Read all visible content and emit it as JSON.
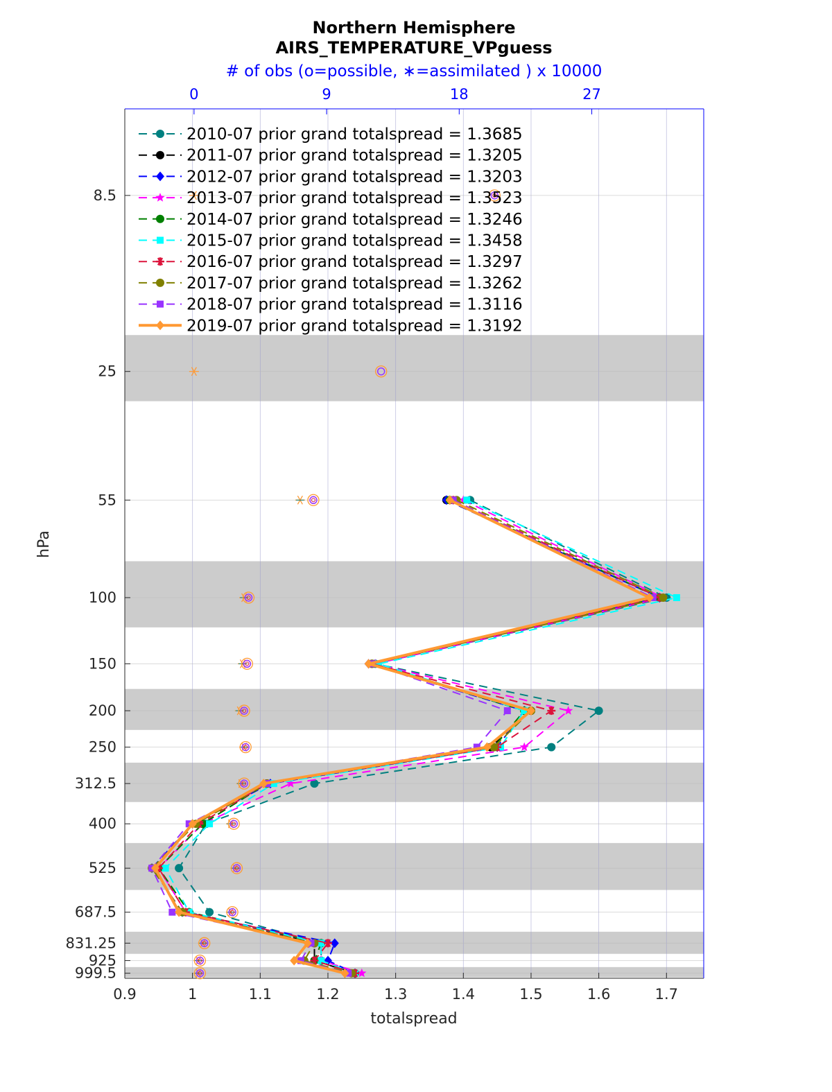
{
  "chart_data": {
    "type": "line",
    "title": "Northern Hemisphere",
    "subtitle": "AIRS_TEMPERATURE_VPguess",
    "top_axis_label": "# of obs (o=possible, ∗=assimilated ) x 10000",
    "xlabel": "totalspread",
    "ylabel": "hPa",
    "xlim": [
      0.9,
      1.755
    ],
    "x_ticks": [
      0.9,
      1,
      1.1,
      1.2,
      1.3,
      1.4,
      1.5,
      1.6,
      1.7
    ],
    "x_tick_labels": [
      "0.9",
      "1",
      "1.1",
      "1.2",
      "1.3",
      "1.4",
      "1.5",
      "1.6",
      "1.7"
    ],
    "top_xlim": [
      -4.7,
      34.6
    ],
    "top_ticks": [
      0,
      9,
      18,
      27
    ],
    "top_tick_labels": [
      "0",
      "9",
      "18",
      "27"
    ],
    "ylim": [
      1031,
      5
    ],
    "levels": [
      8.5,
      25,
      55,
      100,
      150,
      200,
      250,
      312.5,
      400,
      525,
      687.5,
      831.25,
      925,
      999.5
    ],
    "level_labels": [
      "8.5",
      "25",
      "55",
      "100",
      "150",
      "200",
      "250",
      "312.5",
      "400",
      "525",
      "687.5",
      "831.25",
      "925",
      "999.5"
    ],
    "plot_levels": [
      55,
      100,
      150,
      200,
      250,
      312.5,
      400,
      525,
      687.5,
      831.25,
      925,
      999.5
    ],
    "grid": true,
    "shaded_layers_hpa": [
      [
        20,
        30
      ],
      [
        80,
        120
      ],
      [
        175,
        225
      ],
      [
        275,
        350
      ],
      [
        450,
        600
      ],
      [
        775,
        887.5
      ],
      [
        962.5,
        1025
      ]
    ],
    "legend_position": "top-left",
    "series": [
      {
        "name": "2010-07 prior grand totalspread = 1.3685",
        "color": "#008080",
        "dash": "12,8",
        "width": 2,
        "marker": "circle",
        "values": [
          1.41,
          1.7,
          1.27,
          1.6,
          1.53,
          1.18,
          1.02,
          0.98,
          1.025,
          1.19,
          1.19,
          1.24
        ]
      },
      {
        "name": "2011-07 prior grand totalspread = 1.3205",
        "color": "#000000",
        "dash": "12,8",
        "width": 2,
        "marker": "circle",
        "values": [
          1.375,
          1.69,
          1.265,
          1.5,
          1.44,
          1.11,
          1.015,
          0.95,
          0.995,
          1.18,
          1.18,
          1.24
        ]
      },
      {
        "name": "2012-07 prior grand totalspread = 1.3203",
        "color": "#0000ff",
        "dash": "12,8",
        "width": 2,
        "marker": "diamond",
        "values": [
          1.375,
          1.69,
          1.26,
          1.49,
          1.45,
          1.115,
          1.0,
          0.94,
          0.985,
          1.21,
          1.2,
          1.24
        ]
      },
      {
        "name": "2013-07 prior grand totalspread = 1.3523",
        "color": "#ff00ff",
        "dash": "12,8",
        "width": 2,
        "marker": "star",
        "values": [
          1.4,
          1.695,
          1.27,
          1.555,
          1.49,
          1.145,
          1.015,
          0.95,
          0.99,
          1.19,
          1.19,
          1.25
        ]
      },
      {
        "name": "2014-07 prior grand totalspread = 1.3246",
        "color": "#008000",
        "dash": "12,8",
        "width": 2,
        "marker": "circle",
        "values": [
          1.38,
          1.69,
          1.265,
          1.49,
          1.445,
          1.11,
          1.015,
          0.95,
          0.995,
          1.19,
          1.18,
          1.24
        ]
      },
      {
        "name": "2015-07 prior grand totalspread = 1.3458",
        "color": "#00ffff",
        "dash": "12,8",
        "width": 2,
        "marker": "square",
        "values": [
          1.405,
          1.715,
          1.275,
          1.49,
          1.455,
          1.12,
          1.025,
          0.96,
          0.995,
          1.19,
          1.19,
          1.24
        ]
      },
      {
        "name": "2016-07 prior grand totalspread = 1.3297",
        "color": "#dc143c",
        "dash": "12,8",
        "width": 2,
        "marker": "asterisk",
        "values": [
          1.385,
          1.69,
          1.265,
          1.53,
          1.45,
          1.11,
          1.01,
          0.95,
          0.99,
          1.2,
          1.18,
          1.24
        ]
      },
      {
        "name": "2017-07 prior grand totalspread = 1.3262",
        "color": "#808000",
        "dash": "12,8",
        "width": 2,
        "marker": "circle",
        "values": [
          1.39,
          1.695,
          1.265,
          1.5,
          1.445,
          1.11,
          1.005,
          0.94,
          0.985,
          1.18,
          1.165,
          1.235
        ]
      },
      {
        "name": "2018-07 prior grand totalspread = 1.3116",
        "color": "#9933ff",
        "dash": "12,8",
        "width": 2,
        "marker": "square",
        "values": [
          1.385,
          1.68,
          1.265,
          1.465,
          1.42,
          1.11,
          0.995,
          0.94,
          0.97,
          1.175,
          1.16,
          1.23
        ]
      },
      {
        "name": "2019-07 prior grand totalspread = 1.3192",
        "color": "#ff9933",
        "dash": "",
        "width": 4,
        "marker": "diamond",
        "values": [
          1.38,
          1.675,
          1.26,
          1.5,
          1.435,
          1.105,
          1.0,
          0.945,
          0.98,
          1.17,
          1.15,
          1.225
        ]
      }
    ],
    "obs_possible_x10000": [
      20.4,
      12.7,
      8.1,
      3.7,
      3.6,
      3.4,
      3.5,
      3.4,
      2.7,
      2.9,
      2.6,
      0.7,
      0.4,
      0.4
    ],
    "obs_assimilated_x10000": [
      0.0,
      0.0,
      7.2,
      3.4,
      3.3,
      3.1,
      3.4,
      3.2,
      2.5,
      2.8,
      2.5,
      0.6,
      0.3,
      0.3
    ]
  }
}
